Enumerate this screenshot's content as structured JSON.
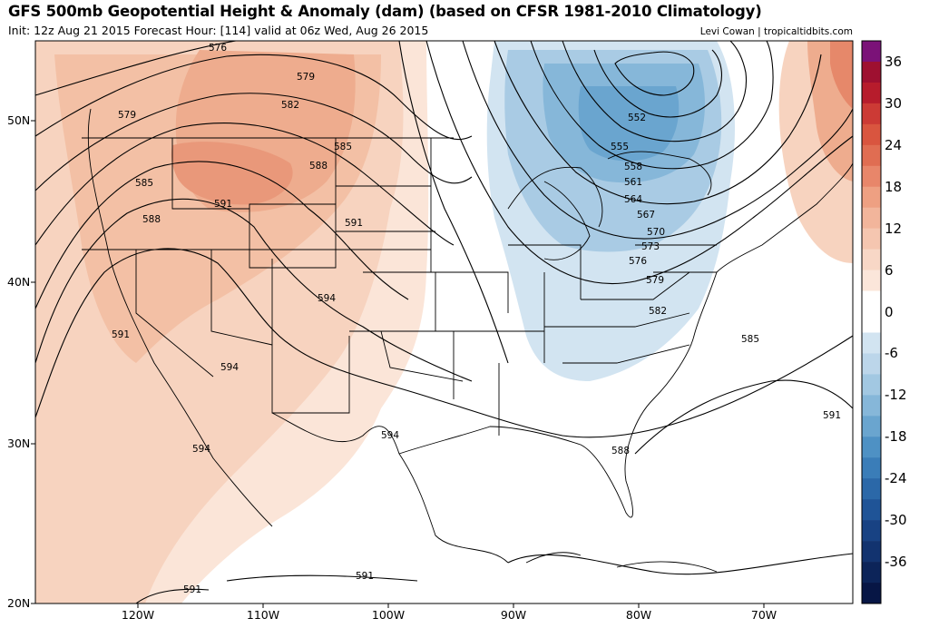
{
  "header": {
    "title": "GFS 500mb Geopotential Height & Anomaly (dam) (based on CFSR 1981-2010 Climatology)",
    "subtitle": "Init: 12z Aug 21 2015   Forecast Hour: [114]   valid at 06z Wed, Aug 26 2015",
    "credit": "Levi Cowan | tropicaltidbits.com"
  },
  "axes": {
    "lat_labels": [
      "50N",
      "40N",
      "30N",
      "20N"
    ],
    "lon_labels": [
      "120W",
      "110W",
      "100W",
      "90W",
      "80W",
      "70W"
    ]
  },
  "colorbar": {
    "labels": [
      "36",
      "30",
      "24",
      "18",
      "12",
      "6",
      "0",
      "-6",
      "-12",
      "-18",
      "-24",
      "-30",
      "-36"
    ],
    "colors": [
      "#7b1278",
      "#9e1030",
      "#b71c2c",
      "#cc3a35",
      "#d9553f",
      "#e06d52",
      "#e8866a",
      "#eea082",
      "#f2b59b",
      "#f5c6b0",
      "#f8d7c6",
      "#fbe6da",
      "#ffffff",
      "#ffffff",
      "#d2e4f1",
      "#bcd6ea",
      "#a2c8e2",
      "#86b7d9",
      "#6aa5cf",
      "#4e91c4",
      "#3a7db8",
      "#2b68a8",
      "#1f5497",
      "#184283",
      "#12336f",
      "#0c2459",
      "#071645"
    ]
  },
  "contour_labels": [
    "576",
    "579",
    "582",
    "585",
    "588",
    "591",
    "594",
    "552",
    "555",
    "558",
    "561",
    "564",
    "567",
    "570",
    "573",
    "576",
    "579",
    "582",
    "585",
    "588",
    "591",
    "585",
    "588",
    "591",
    "594",
    "591",
    "594",
    "594",
    "591",
    "591",
    "579"
  ]
}
